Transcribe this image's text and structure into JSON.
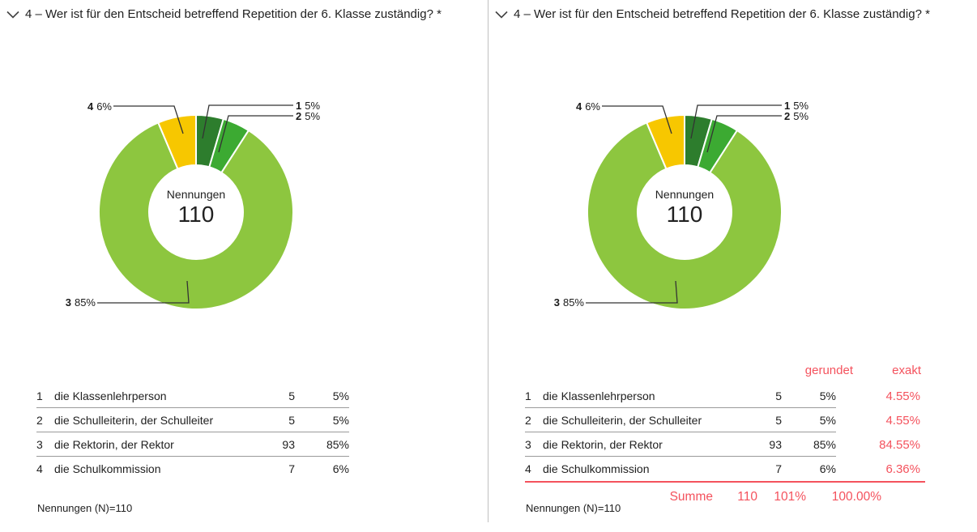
{
  "colors": {
    "accent_red": "#f4525d",
    "slice_1_dark_green": "#2d7d2d",
    "slice_2_green": "#3caa32",
    "slice_3_light_green": "#8dc63f",
    "slice_4_yellow": "#f7c700",
    "row_line": "#9a9a9a",
    "divider": "#bfbfbf",
    "text": "#212121"
  },
  "chart_data": [
    {
      "type": "pie",
      "donut": true,
      "title": "4 – Wer ist für den Entscheid betreffend Repetition der 6. Klasse zuständig? *",
      "categories": [
        "die Klassenlehrperson",
        "die Schulleiterin, der Schulleiter",
        "die Rektorin, der Rektor",
        "die Schulkommission"
      ],
      "values": [
        5,
        5,
        93,
        7
      ],
      "total": 110,
      "percent_labels": [
        "5%",
        "5%",
        "85%",
        "6%"
      ],
      "colors": [
        "#2d7d2d",
        "#3caa32",
        "#8dc63f",
        "#f7c700"
      ],
      "center_label": "Nennungen",
      "center_value": "110",
      "callouts": [
        {
          "nr": "1",
          "pct": "5%"
        },
        {
          "nr": "2",
          "pct": "5%"
        },
        {
          "nr": "3",
          "pct": "85%"
        },
        {
          "nr": "4",
          "pct": "6%"
        }
      ]
    },
    {
      "type": "pie",
      "donut": true,
      "title": "4 – Wer ist für den Entscheid betreffend Repetition der 6. Klasse zuständig? *",
      "categories": [
        "die Klassenlehrperson",
        "die Schulleiterin, der Schulleiter",
        "die Rektorin, der Rektor",
        "die Schulkommission"
      ],
      "values": [
        5,
        5,
        93,
        7
      ],
      "total": 110,
      "percent_labels": [
        "5%",
        "5%",
        "85%",
        "6%"
      ],
      "colors": [
        "#2d7d2d",
        "#3caa32",
        "#8dc63f",
        "#f7c700"
      ],
      "center_label": "Nennungen",
      "center_value": "110",
      "callouts": [
        {
          "nr": "1",
          "pct": "5%"
        },
        {
          "nr": "2",
          "pct": "5%"
        },
        {
          "nr": "3",
          "pct": "85%"
        },
        {
          "nr": "4",
          "pct": "6%"
        }
      ]
    }
  ],
  "panels": [
    {
      "title": "4 – Wer ist für den Entscheid betreffend Repetition der 6. Klasse zuständig? *",
      "rows": [
        {
          "nr": "1",
          "label": "die Klassenlehrperson",
          "n": "5",
          "pct": "5%"
        },
        {
          "nr": "2",
          "label": "die Schulleiterin, der Schulleiter",
          "n": "5",
          "pct": "5%"
        },
        {
          "nr": "3",
          "label": "die Rektorin, der Rektor",
          "n": "93",
          "pct": "85%"
        },
        {
          "nr": "4",
          "label": "die Schulkommission",
          "n": "7",
          "pct": "6%"
        }
      ],
      "note": "Nennungen (N)=110"
    },
    {
      "title": "4 – Wer ist für den Entscheid betreffend Repetition der 6. Klasse zuständig? *",
      "col_headers": {
        "gerundet": "gerundet",
        "exakt": "exakt"
      },
      "rows": [
        {
          "nr": "1",
          "label": "die Klassenlehrperson",
          "n": "5",
          "pct": "5%",
          "exact": "4.55%"
        },
        {
          "nr": "2",
          "label": "die Schulleiterin, der Schulleiter",
          "n": "5",
          "pct": "5%",
          "exact": "4.55%"
        },
        {
          "nr": "3",
          "label": "die Rektorin, der Rektor",
          "n": "93",
          "pct": "85%",
          "exact": "84.55%"
        },
        {
          "nr": "4",
          "label": "die Schulkommission",
          "n": "7",
          "pct": "6%",
          "exact": "6.36%"
        }
      ],
      "summe": {
        "label": "Summe",
        "n": "110",
        "pct": "101%",
        "exact": "100.00%"
      },
      "note": "Nennungen (N)=110"
    }
  ]
}
